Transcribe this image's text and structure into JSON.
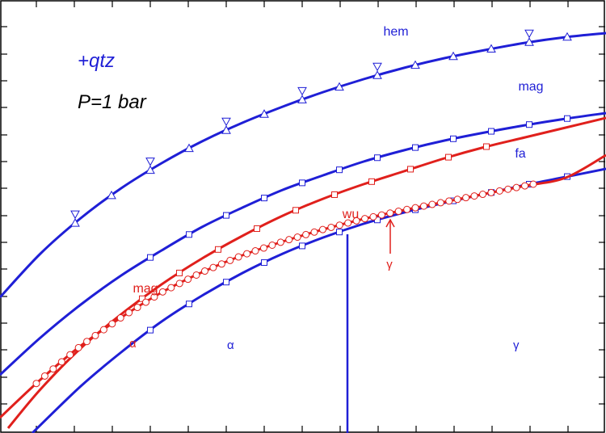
{
  "chart_data": {
    "type": "line",
    "title": "",
    "xlabel": "",
    "ylabel": "",
    "grid": false,
    "colors": {
      "blue": "#1f1fd6",
      "red": "#e0201c",
      "black": "#000000"
    },
    "annotations": {
      "system": "+qtz",
      "pressure": "P=1 bar",
      "phase_alpha": "α",
      "phase_gamma": "γ",
      "fe_alpha": "α",
      "fe_gamma": "γ"
    },
    "series": [
      {
        "name": "hem",
        "color": "#1f1fd6",
        "marker": "triangle",
        "x": [
          0,
          50,
          100,
          150,
          200,
          250,
          300,
          350,
          400,
          450,
          500,
          550,
          600,
          650,
          700,
          750
        ],
        "y": [
          368,
          314,
          270,
          233,
          202,
          175,
          152,
          132,
          114,
          98,
          84,
          72,
          62,
          53,
          46,
          41
        ],
        "markers_x": [
          93,
          138,
          186,
          234,
          280,
          327,
          374,
          420,
          467,
          514,
          561,
          608,
          655,
          702
        ]
      },
      {
        "name": "mag",
        "color": "#1f1fd6",
        "marker": "square",
        "x": [
          0,
          50,
          100,
          150,
          200,
          250,
          300,
          350,
          400,
          450,
          500,
          550,
          600,
          650,
          700,
          750
        ],
        "y": [
          464,
          418,
          377,
          341,
          310,
          281,
          257,
          235,
          217,
          200,
          186,
          174,
          164,
          155,
          147,
          140
        ],
        "markers_x": [
          186,
          234,
          280,
          327,
          374,
          420,
          467,
          514,
          561,
          608,
          655,
          702
        ]
      },
      {
        "name": "fa",
        "color": "#1f1fd6",
        "marker": "square",
        "x": [
          40,
          100,
          150,
          200,
          250,
          300,
          350,
          400,
          450,
          500,
          550,
          600,
          650,
          700,
          750
        ],
        "y": [
          536,
          478,
          436,
          398,
          366,
          338,
          314,
          294,
          277,
          263,
          251,
          240,
          229,
          219,
          209
        ],
        "markers_x": [
          186,
          234,
          280,
          327,
          374,
          420,
          467,
          514,
          561,
          608,
          655,
          702
        ]
      },
      {
        "name": "mag",
        "color": "#e0201c",
        "marker": "square",
        "x": [
          10,
          50,
          100,
          150,
          200,
          250,
          300,
          350,
          400,
          450,
          500,
          550,
          600,
          650,
          700,
          750
        ],
        "y": [
          530,
          482,
          431,
          389,
          352,
          320,
          292,
          267,
          246,
          228,
          212,
          196,
          182,
          170,
          158,
          146
        ],
        "markers_x": [
          176,
          222,
          270,
          318,
          366,
          414,
          460,
          508,
          555,
          602
        ]
      },
      {
        "name": "wu",
        "color": "#e0201c",
        "marker": "circle",
        "x": [
          0,
          50,
          100,
          150,
          200,
          250,
          300,
          350,
          400,
          450,
          500,
          550,
          600,
          650,
          700,
          750
        ],
        "y": [
          517,
          470,
          428,
          393,
          362,
          337,
          316,
          299,
          284,
          271,
          260,
          250,
          240,
          230,
          220,
          192
        ],
        "markers_range": [
          45,
          660,
          30
        ]
      },
      {
        "name": "wu-fe-boundary",
        "color": "#1f1fd6",
        "marker": "none",
        "x": [
          430,
          430
        ],
        "y": [
          290,
          536
        ]
      },
      {
        "name": "gamma-arrow",
        "color": "#e0201c",
        "marker": "none",
        "x": [
          483,
          483
        ],
        "y": [
          314,
          272
        ]
      }
    ],
    "labels": [
      {
        "text": "hem",
        "color": "#1f1fd6",
        "x": 490,
        "y": 44,
        "size": 16
      },
      {
        "text": "mag",
        "color": "#1f1fd6",
        "x": 657,
        "y": 112,
        "size": 16
      },
      {
        "text": "fa",
        "color": "#1f1fd6",
        "x": 644,
        "y": 195,
        "size": 16
      },
      {
        "text": "wu",
        "color": "#e0201c",
        "x": 434,
        "y": 270,
        "size": 16
      },
      {
        "text": "mag",
        "color": "#e0201c",
        "x": 180,
        "y": 362,
        "size": 16
      },
      {
        "text": "γ",
        "color": "#e0201c",
        "x": 482,
        "y": 332,
        "size": 15
      }
    ]
  }
}
